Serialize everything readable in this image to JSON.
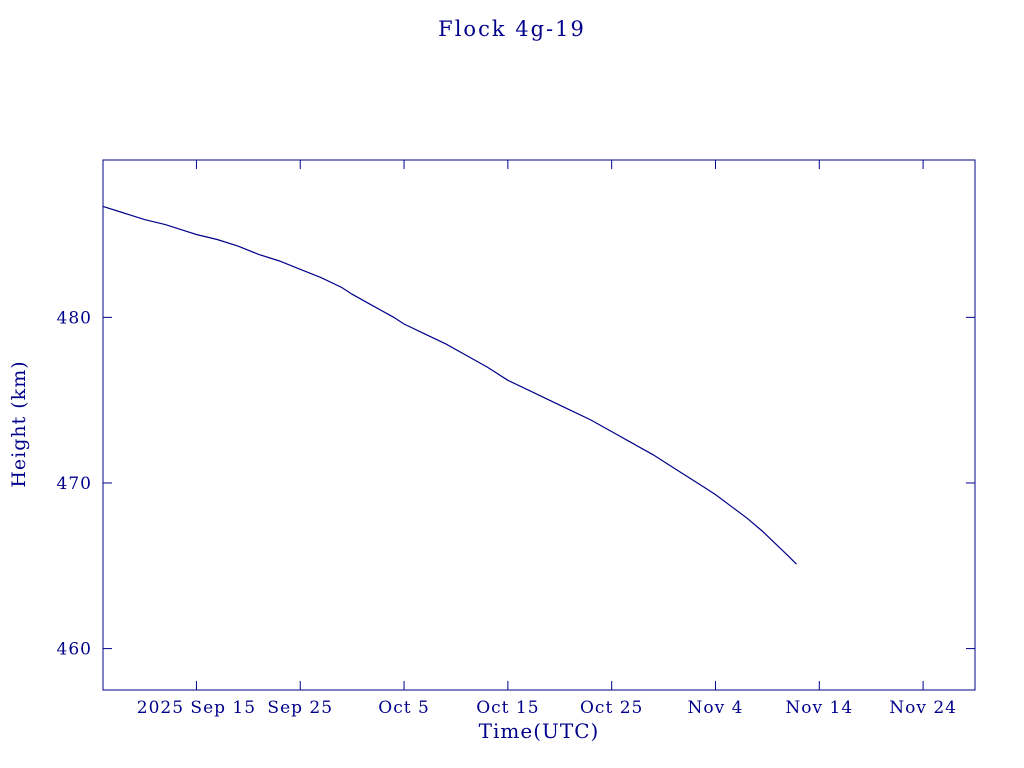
{
  "chart_data": {
    "type": "line",
    "title": "Flock 4g-19",
    "xlabel": "Time(UTC)",
    "ylabel": "Height (km)",
    "x_unit": "days since 2025-09-01",
    "xlim": [
      5,
      89
    ],
    "ylim": [
      457.5,
      489.5
    ],
    "grid": false,
    "legend": "none",
    "x_ticks": [
      {
        "day": 14,
        "label": "2025 Sep 15"
      },
      {
        "day": 24,
        "label": "Sep 25"
      },
      {
        "day": 34,
        "label": "Oct  5"
      },
      {
        "day": 44,
        "label": "Oct 15"
      },
      {
        "day": 54,
        "label": "Oct 25"
      },
      {
        "day": 64,
        "label": "Nov  4"
      },
      {
        "day": 74,
        "label": "Nov 14"
      },
      {
        "day": 84,
        "label": "Nov 24"
      }
    ],
    "y_ticks": [
      {
        "value": 460,
        "label": "460"
      },
      {
        "value": 470,
        "label": "470"
      },
      {
        "value": 480,
        "label": "480"
      }
    ],
    "series": [
      {
        "name": "Flock 4g-19 orbital height",
        "points": [
          [
            5,
            486.7
          ],
          [
            7,
            486.3
          ],
          [
            9,
            485.9
          ],
          [
            11,
            485.6
          ],
          [
            13,
            485.2
          ],
          [
            14,
            485.0
          ],
          [
            16,
            484.7
          ],
          [
            18,
            484.3
          ],
          [
            20,
            483.8
          ],
          [
            22,
            483.4
          ],
          [
            24,
            482.9
          ],
          [
            26,
            482.4
          ],
          [
            28,
            481.8
          ],
          [
            29,
            481.4
          ],
          [
            31,
            480.7
          ],
          [
            33,
            480.0
          ],
          [
            34,
            479.6
          ],
          [
            36,
            479.0
          ],
          [
            38,
            478.4
          ],
          [
            40,
            477.7
          ],
          [
            42,
            477.0
          ],
          [
            44,
            476.2
          ],
          [
            46,
            475.6
          ],
          [
            48,
            475.0
          ],
          [
            50,
            474.4
          ],
          [
            52,
            473.8
          ],
          [
            54,
            473.1
          ],
          [
            56,
            472.4
          ],
          [
            58,
            471.7
          ],
          [
            60,
            470.9
          ],
          [
            62,
            470.1
          ],
          [
            63,
            469.7
          ],
          [
            64,
            469.3
          ],
          [
            65.5,
            468.6
          ],
          [
            67,
            467.9
          ],
          [
            68.5,
            467.1
          ],
          [
            70,
            466.2
          ],
          [
            71,
            465.6
          ],
          [
            71.8,
            465.1
          ]
        ]
      }
    ],
    "colors": {
      "line": "#00008B",
      "text": "#00008B",
      "background": "#FFFFFF"
    }
  }
}
